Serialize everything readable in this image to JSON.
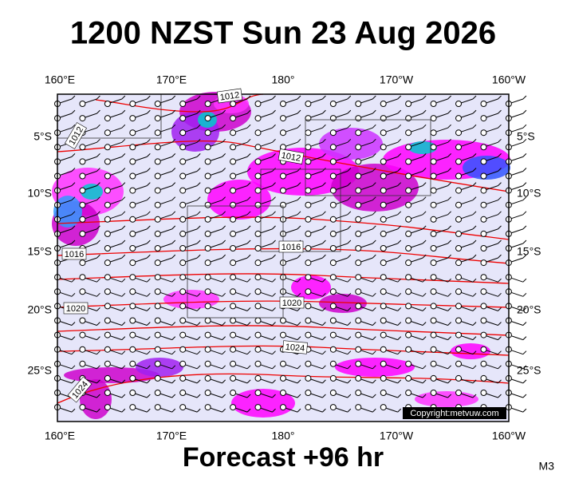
{
  "header": {
    "title": "1200 NZST Sun 23 Aug 2026"
  },
  "map": {
    "top_longitudes": [
      "160°E",
      "170°E",
      "180°",
      "170°W",
      "160°W"
    ],
    "bottom_longitudes": [
      "160°E",
      "170°E",
      "180°",
      "170°W",
      "160°W"
    ],
    "left_latitudes": [
      "5°S",
      "10°S",
      "15°S",
      "20°S",
      "25°S"
    ],
    "right_latitudes": [
      "5°S",
      "10°S",
      "15°S",
      "20°S",
      "25°S"
    ],
    "isobar_labels": [
      "1012",
      "1012",
      "1012",
      "1016",
      "1016",
      "1020",
      "1020",
      "1024",
      "1024"
    ],
    "copyright": "Copyright:metvuw.com"
  },
  "footer": {
    "forecast": "Forecast +96 hr",
    "code": "M3"
  }
}
